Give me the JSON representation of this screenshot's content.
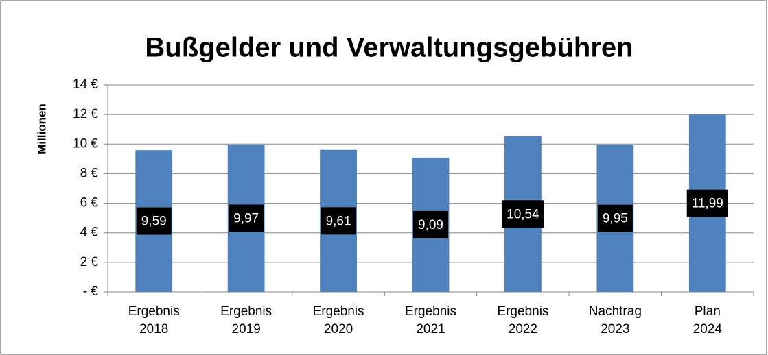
{
  "chart_data": {
    "type": "bar",
    "title": "Bußgelder und Verwaltungsgebühren",
    "ylabel": "Millionen",
    "categories": [
      "Ergebnis 2018",
      "Ergebnis 2019",
      "Ergebnis 2020",
      "Ergebnis 2021",
      "Ergebnis 2022",
      "Nachtrag 2023",
      "Plan 2024"
    ],
    "values": [
      9.59,
      9.97,
      9.61,
      9.09,
      10.54,
      9.95,
      11.99
    ],
    "value_labels": [
      "9,59",
      "9,97",
      "9,61",
      "9,09",
      "10,54",
      "9,95",
      "11,99"
    ],
    "color": "#4f81bd",
    "ylim": [
      0,
      14
    ],
    "yticks": [
      {
        "value": 0,
        "label": "-  €"
      },
      {
        "value": 2,
        "label": "2 €"
      },
      {
        "value": 4,
        "label": "4 €"
      },
      {
        "value": 6,
        "label": "6 €"
      },
      {
        "value": 8,
        "label": "8 €"
      },
      {
        "value": 10,
        "label": "10 €"
      },
      {
        "value": 12,
        "label": "12 €"
      },
      {
        "value": 14,
        "label": "14 €"
      }
    ],
    "grid": true
  }
}
